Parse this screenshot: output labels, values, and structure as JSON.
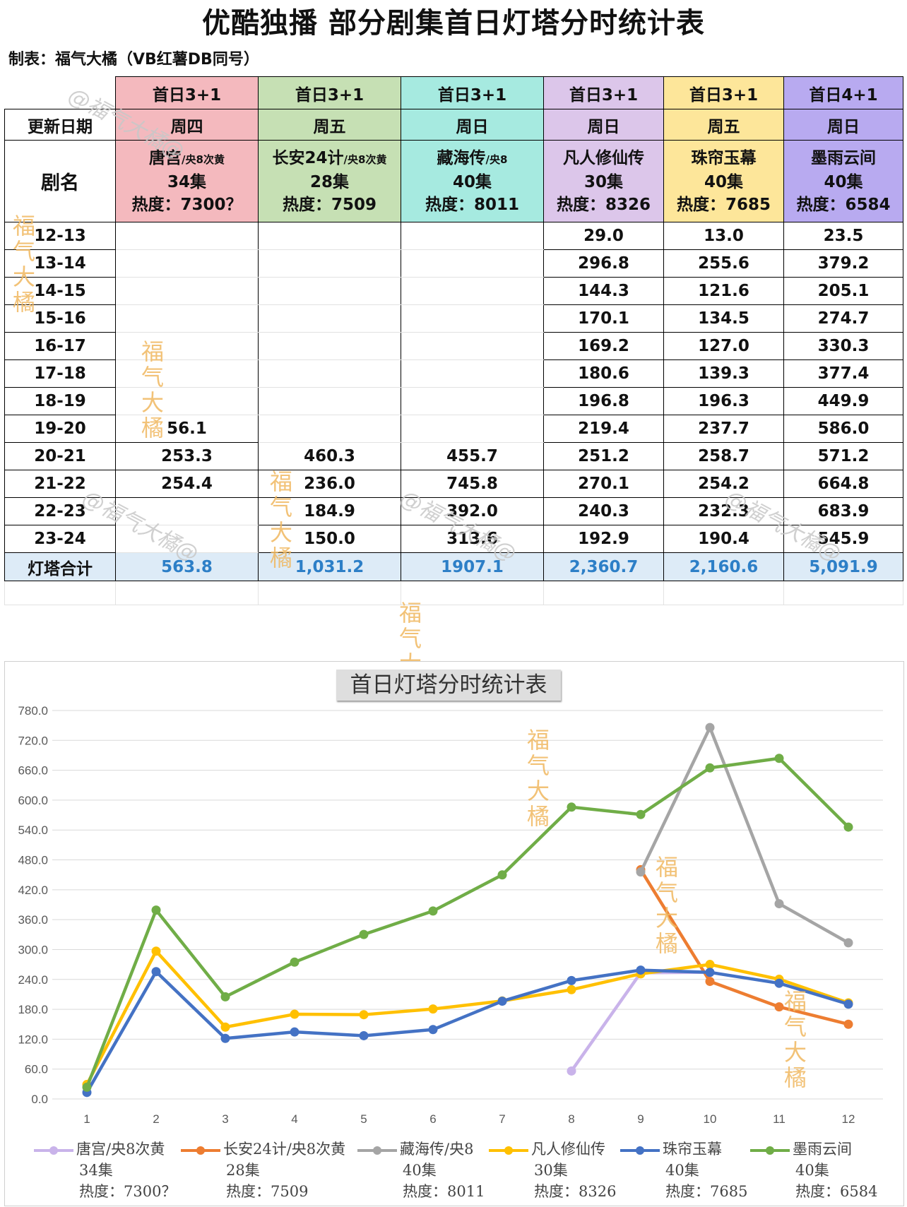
{
  "title": "优酷独播  部分剧集首日灯塔分时统计表",
  "maker": "制表：福气大橘（VB红薯DB同号）",
  "table": {
    "header_label_update": "更新日期",
    "header_label_name": "剧名",
    "total_label": "灯塔合计",
    "time_slots": [
      "12-13",
      "13-14",
      "14-15",
      "15-16",
      "16-17",
      "17-18",
      "18-19",
      "19-20",
      "20-21",
      "21-22",
      "22-23",
      "23-24"
    ],
    "columns": [
      {
        "release": "首日3+1",
        "weekday": "周四",
        "name": "唐宫",
        "name_suffix": "/央8次黄",
        "episodes": "34集",
        "heat": "热度：7300？",
        "color": "#f4b9be",
        "values": [
          "",
          "",
          "",
          "",
          "",
          "",
          "",
          "56.1",
          "253.3",
          "254.4",
          "",
          ""
        ],
        "total": "563.8"
      },
      {
        "release": "首日3+1",
        "weekday": "周五",
        "name": "长安24计",
        "name_suffix": "/央8次黄",
        "episodes": "28集",
        "heat": "热度：7509",
        "color": "#c6e0b4",
        "values": [
          "",
          "",
          "",
          "",
          "",
          "",
          "",
          "",
          "460.3",
          "236.0",
          "184.9",
          "150.0"
        ],
        "total": "1,031.2"
      },
      {
        "release": "首日3+1",
        "weekday": "周日",
        "name": "藏海传",
        "name_suffix": "/央8",
        "episodes": "40集",
        "heat": "热度：8011",
        "color": "#a6eae0",
        "values": [
          "",
          "",
          "",
          "",
          "",
          "",
          "",
          "",
          "455.7",
          "745.8",
          "392.0",
          "313.6"
        ],
        "total": "1907.1"
      },
      {
        "release": "首日3+1",
        "weekday": "周日",
        "name": "凡人修仙传",
        "name_suffix": "",
        "episodes": "30集",
        "heat": "热度：8326",
        "color": "#dcc6ea",
        "values": [
          "29.0",
          "296.8",
          "144.3",
          "170.1",
          "169.2",
          "180.6",
          "196.8",
          "219.4",
          "251.2",
          "270.1",
          "240.3",
          "192.9"
        ],
        "total": "2,360.7"
      },
      {
        "release": "首日3+1",
        "weekday": "周五",
        "name": "珠帘玉幕",
        "name_suffix": "",
        "episodes": "40集",
        "heat": "热度：7685",
        "color": "#fde69a",
        "values": [
          "13.0",
          "255.6",
          "121.6",
          "134.5",
          "127.0",
          "139.3",
          "196.3",
          "237.7",
          "258.7",
          "254.2",
          "232.3",
          "190.4"
        ],
        "total": "2,160.6"
      },
      {
        "release": "首日4+1",
        "weekday": "周日",
        "name": "墨雨云间",
        "name_suffix": "",
        "episodes": "40集",
        "heat": "热度：6584",
        "color": "#b8aaf0",
        "values": [
          "23.5",
          "379.2",
          "205.1",
          "274.7",
          "330.3",
          "377.4",
          "449.9",
          "586.0",
          "571.2",
          "664.8",
          "683.9",
          "545.9"
        ],
        "total": "5,091.9"
      }
    ]
  },
  "watermarks": {
    "vertical": "福气大橘",
    "handle": "@福气大橘@"
  },
  "chart_data": {
    "type": "line",
    "title": "首日灯塔分时统计表",
    "x": [
      1,
      2,
      3,
      4,
      5,
      6,
      7,
      8,
      9,
      10,
      11,
      12
    ],
    "ylim": [
      0,
      780
    ],
    "yticks": [
      "0.0",
      "60.0",
      "120.0",
      "180.0",
      "240.0",
      "300.0",
      "360.0",
      "420.0",
      "480.0",
      "540.0",
      "600.0",
      "660.0",
      "720.0",
      "780.0"
    ],
    "grid": true,
    "legend_position": "bottom",
    "series": [
      {
        "name": "唐宫/央8次黄",
        "label_lines": [
          "34集",
          "热度：7300？"
        ],
        "color": "#c9b3ea",
        "values": [
          null,
          null,
          null,
          null,
          null,
          null,
          null,
          56.1,
          253.3,
          254.4,
          null,
          null
        ]
      },
      {
        "name": "长安24计/央8次黄",
        "label_lines": [
          "28集",
          "热度：7509"
        ],
        "color": "#ed7d31",
        "values": [
          null,
          null,
          null,
          null,
          null,
          null,
          null,
          null,
          460.3,
          236.0,
          184.9,
          150.0
        ]
      },
      {
        "name": "藏海传/央8",
        "label_lines": [
          "40集",
          "热度：8011"
        ],
        "color": "#a5a5a5",
        "values": [
          null,
          null,
          null,
          null,
          null,
          null,
          null,
          null,
          455.7,
          745.8,
          392.0,
          313.6
        ]
      },
      {
        "name": "凡人修仙传",
        "label_lines": [
          "30集",
          "热度：8326"
        ],
        "color": "#ffc000",
        "values": [
          29.0,
          296.8,
          144.3,
          170.1,
          169.2,
          180.6,
          196.8,
          219.4,
          251.2,
          270.1,
          240.3,
          192.9
        ]
      },
      {
        "name": "珠帘玉幕",
        "label_lines": [
          "40集",
          "热度：7685"
        ],
        "color": "#4472c4",
        "values": [
          13.0,
          255.6,
          121.6,
          134.5,
          127.0,
          139.3,
          196.3,
          237.7,
          258.7,
          254.2,
          232.3,
          190.4
        ]
      },
      {
        "name": "墨雨云间",
        "label_lines": [
          "40集",
          "热度：6584"
        ],
        "color": "#70ad47",
        "values": [
          23.5,
          379.2,
          205.1,
          274.7,
          330.3,
          377.4,
          449.9,
          586.0,
          571.2,
          664.8,
          683.9,
          545.9
        ]
      }
    ]
  }
}
